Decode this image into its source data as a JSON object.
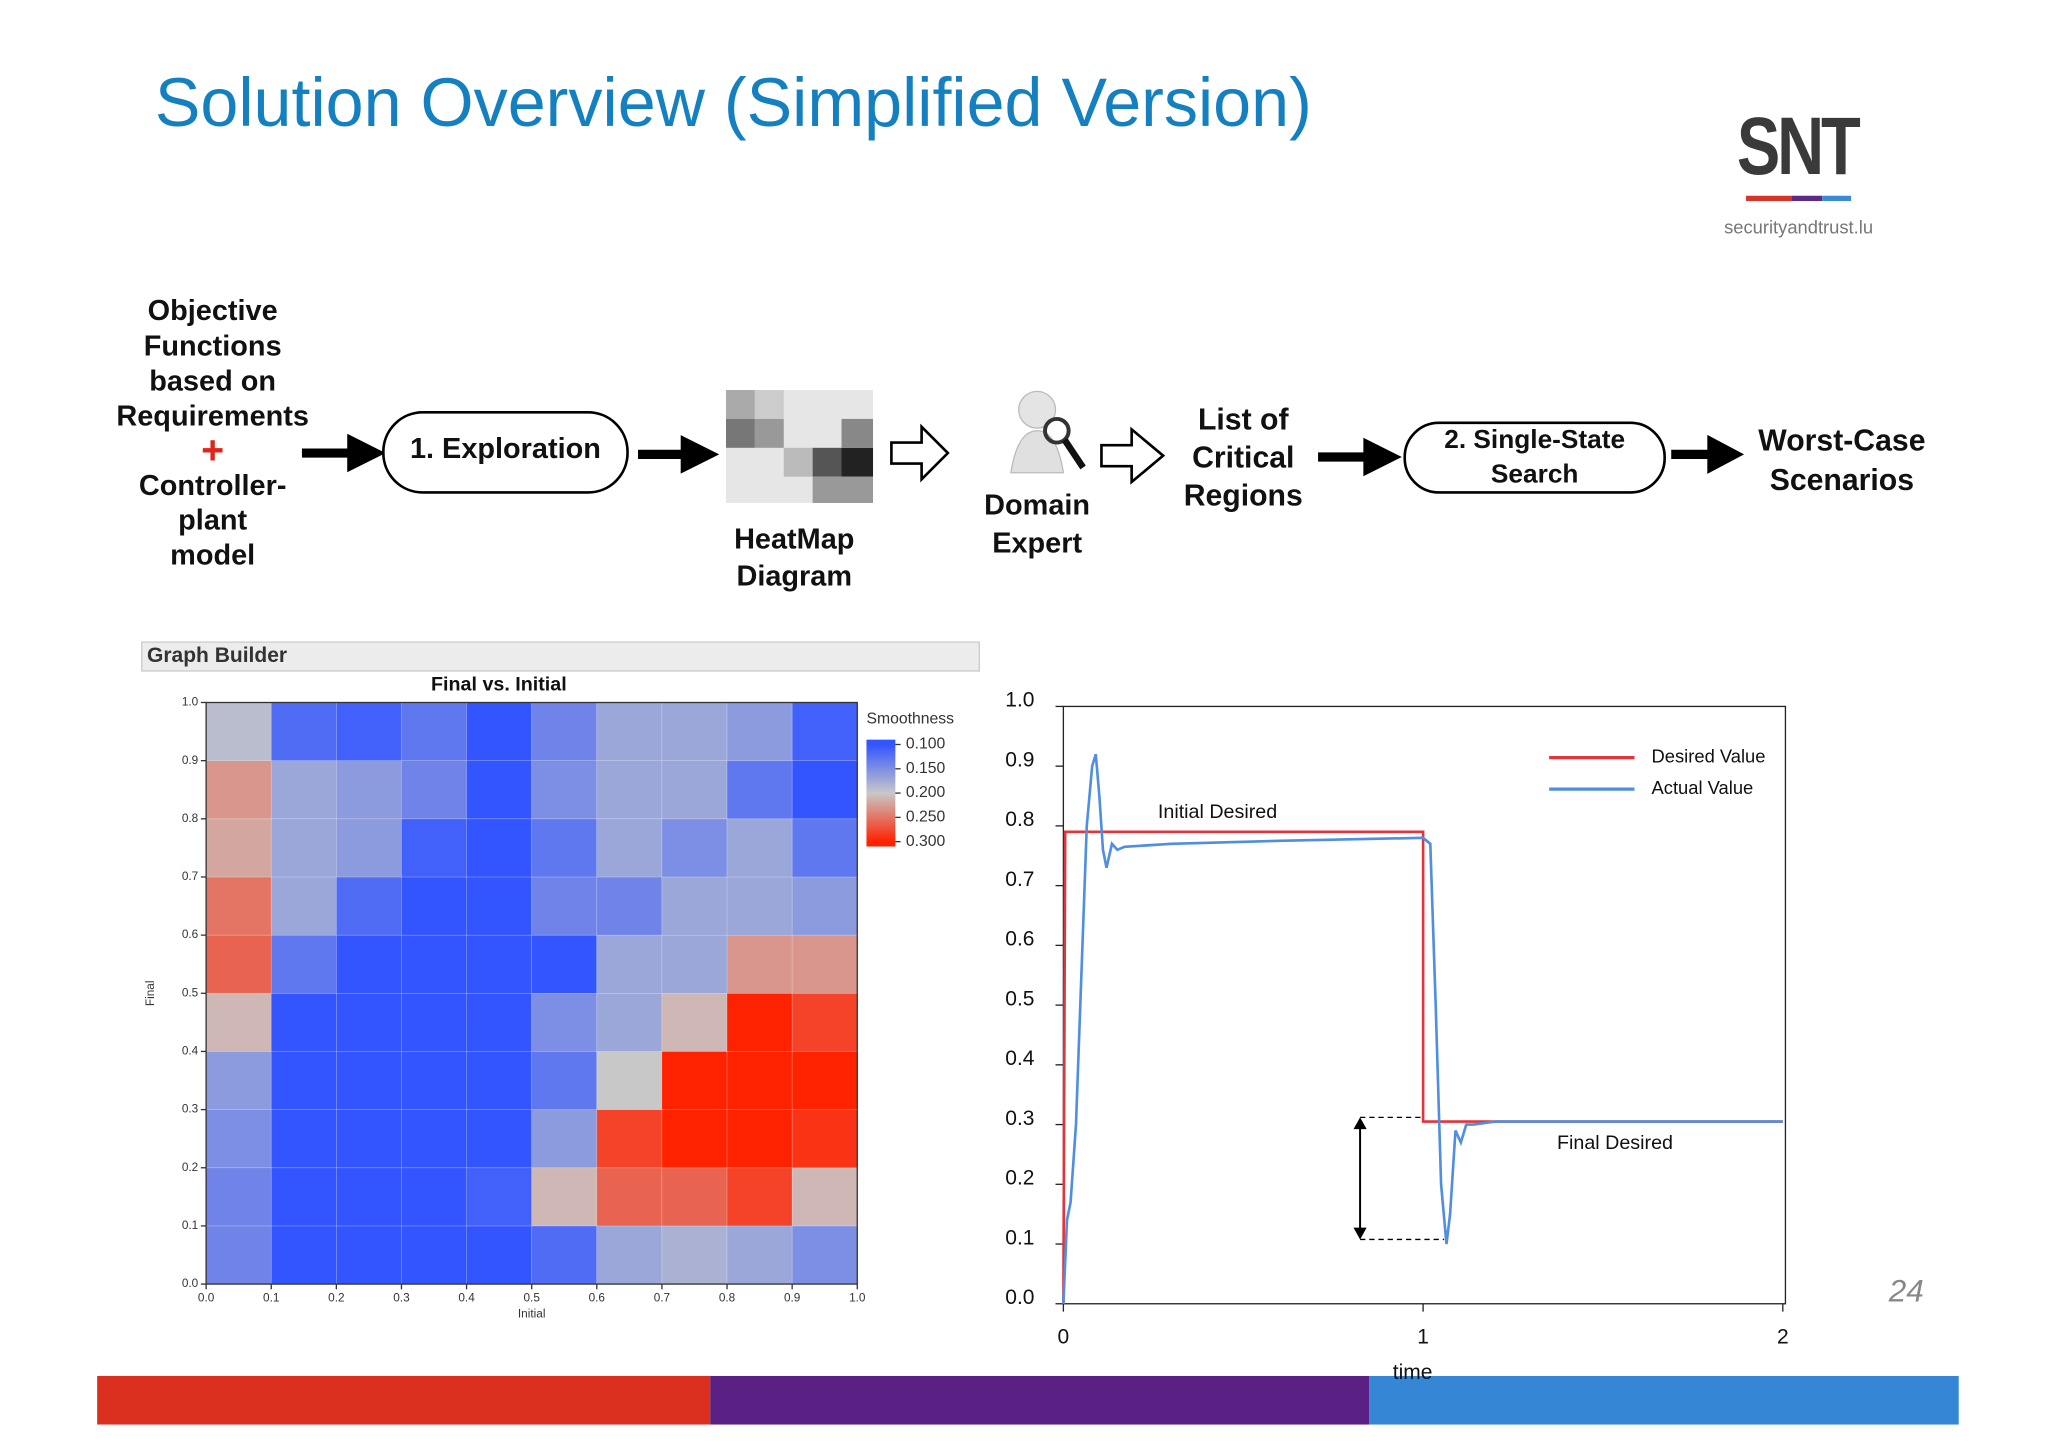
{
  "title": "Solution Overview (Simplified Version)",
  "logo": {
    "mark": "SNT",
    "site": "securityandtrust.lu"
  },
  "page_number": "24",
  "flow": {
    "objective": [
      "Objective",
      "Functions",
      "based on",
      "Requirements"
    ],
    "plus": "+",
    "model": [
      "Controller-",
      "plant",
      "model"
    ],
    "exploration": "1. Exploration",
    "heatmap": [
      "HeatMap",
      "Diagram"
    ],
    "expert": [
      "Domain",
      "Expert"
    ],
    "regions": [
      "List of",
      "Critical",
      "Regions"
    ],
    "search": [
      "2. Single-State",
      "Search"
    ],
    "scenarios": [
      "Worst-Case",
      "Scenarios"
    ]
  },
  "chart_data": [
    {
      "type": "heatmap",
      "panel": "Graph Builder",
      "title": "Final vs. Initial",
      "xlabel": "Initial",
      "ylabel": "Final",
      "xlim": [
        0,
        1
      ],
      "ylim": [
        0,
        1
      ],
      "xticks": [
        {
          "value": 0,
          "label": "0.0"
        },
        0.1,
        0.2,
        0.3,
        0.4,
        0.5,
        0.6,
        0.7,
        0.8,
        0.9,
        {
          "value": 1,
          "label": "1.0"
        }
      ],
      "yticks": [
        {
          "value": 0,
          "label": "0.0"
        },
        0.1,
        0.2,
        0.3,
        0.4,
        0.5,
        0.6,
        0.7,
        0.8,
        0.9,
        {
          "value": 1,
          "label": "1.0"
        }
      ],
      "x_bins": [
        0,
        0.1,
        0.2,
        0.3,
        0.4,
        0.5,
        0.6,
        0.7,
        0.8,
        0.9,
        1
      ],
      "y_bins": [
        0,
        0.1,
        0.2,
        0.3,
        0.4,
        0.5,
        0.6,
        0.7,
        0.8,
        0.9,
        1
      ],
      "z": [
        [
          0.14,
          0.1,
          0.1,
          0.1,
          0.1,
          0.12,
          0.17,
          0.18,
          0.17,
          0.15
        ],
        [
          0.14,
          0.1,
          0.1,
          0.1,
          0.11,
          0.21,
          0.26,
          0.26,
          0.28,
          0.21
        ],
        [
          0.15,
          0.1,
          0.1,
          0.1,
          0.1,
          0.16,
          0.28,
          0.3,
          0.3,
          0.29
        ],
        [
          0.16,
          0.1,
          0.1,
          0.1,
          0.1,
          0.13,
          0.2,
          0.3,
          0.3,
          0.3
        ],
        [
          0.21,
          0.1,
          0.1,
          0.1,
          0.1,
          0.15,
          0.17,
          0.21,
          0.3,
          0.28
        ],
        [
          0.26,
          0.13,
          0.1,
          0.1,
          0.1,
          0.1,
          0.17,
          0.17,
          0.23,
          0.23
        ],
        [
          0.25,
          0.17,
          0.12,
          0.1,
          0.1,
          0.14,
          0.14,
          0.17,
          0.17,
          0.16
        ],
        [
          0.22,
          0.17,
          0.16,
          0.11,
          0.1,
          0.13,
          0.17,
          0.15,
          0.17,
          0.13
        ],
        [
          0.23,
          0.17,
          0.16,
          0.14,
          0.1,
          0.15,
          0.17,
          0.17,
          0.13,
          0.1
        ],
        [
          0.19,
          0.12,
          0.11,
          0.13,
          0.1,
          0.14,
          0.17,
          0.17,
          0.16,
          0.11
        ]
      ],
      "colorbar": {
        "title": "Smoothness",
        "lim": [
          0.09,
          0.31
        ],
        "ticks": [
          {
            "value": 0.1,
            "label": "0.100"
          },
          {
            "value": 0.15,
            "label": "0.150"
          },
          {
            "value": 0.2,
            "label": "0.200"
          },
          {
            "value": 0.25,
            "label": "0.250"
          },
          {
            "value": 0.3,
            "label": "0.300"
          }
        ],
        "colors": [
          "#3355ff",
          "#c8c8c8",
          "#ff2200"
        ]
      }
    },
    {
      "type": "line",
      "xlabel": "time",
      "xlim": [
        0,
        2
      ],
      "ylim": [
        0,
        1
      ],
      "xticks": [
        0,
        1,
        2
      ],
      "yticks": [
        {
          "value": 0,
          "label": "0.0"
        },
        0.1,
        0.2,
        0.3,
        0.4,
        0.5,
        0.6,
        0.7,
        0.8,
        0.9,
        {
          "value": 1,
          "label": "1.0"
        }
      ],
      "annotations": [
        "Initial Desired",
        "Final Desired"
      ],
      "legend": "upper right",
      "series": [
        {
          "name": "Desired Value",
          "color": "#e2343a",
          "x": [
            0,
            0.005,
            1,
            1,
            2
          ],
          "values": [
            0,
            0.79,
            0.79,
            0.305,
            0.305
          ]
        },
        {
          "name": "Actual Value",
          "color": "#4f8ee0",
          "x": [
            0,
            0.01,
            0.02,
            0.035,
            0.05,
            0.065,
            0.08,
            0.09,
            0.1,
            0.11,
            0.12,
            0.135,
            0.15,
            0.17,
            0.3,
            0.6,
            1,
            1.02,
            1.035,
            1.05,
            1.065,
            1.075,
            1.09,
            1.105,
            1.12,
            1.14,
            1.2,
            2
          ],
          "values": [
            0,
            0.14,
            0.17,
            0.3,
            0.55,
            0.8,
            0.9,
            0.92,
            0.85,
            0.76,
            0.73,
            0.77,
            0.76,
            0.765,
            0.77,
            0.775,
            0.78,
            0.77,
            0.5,
            0.2,
            0.1,
            0.15,
            0.29,
            0.27,
            0.3,
            0.3,
            0.305,
            0.305
          ]
        }
      ]
    }
  ]
}
